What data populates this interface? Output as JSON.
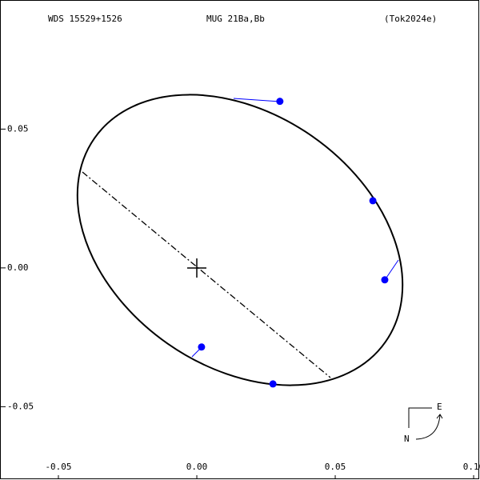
{
  "chart_data": {
    "type": "scatter",
    "title": "WDS 15529+1526",
    "subtitle": "MUG  21Ba,Bb",
    "reference": "(Tok2024e)",
    "compass": {
      "east": "E",
      "north": "N"
    },
    "x": [
      0.03,
      0.0636,
      0.0679,
      0.0275,
      0.0017
    ],
    "y": [
      0.06,
      0.0242,
      -0.0043,
      -0.0418,
      -0.0285
    ],
    "color": "#0000ff",
    "xlim": [
      -0.0711,
      0.1023
    ],
    "ylim": [
      -0.0764,
      0.0965
    ],
    "xticks": [
      -0.05,
      {
        "value": 0,
        "label": "0.00"
      },
      0.05,
      {
        "value": 0.1,
        "label": "0.10"
      }
    ],
    "yticks": [
      0.05,
      {
        "value": 0,
        "label": "0.00"
      },
      -0.05
    ]
  }
}
